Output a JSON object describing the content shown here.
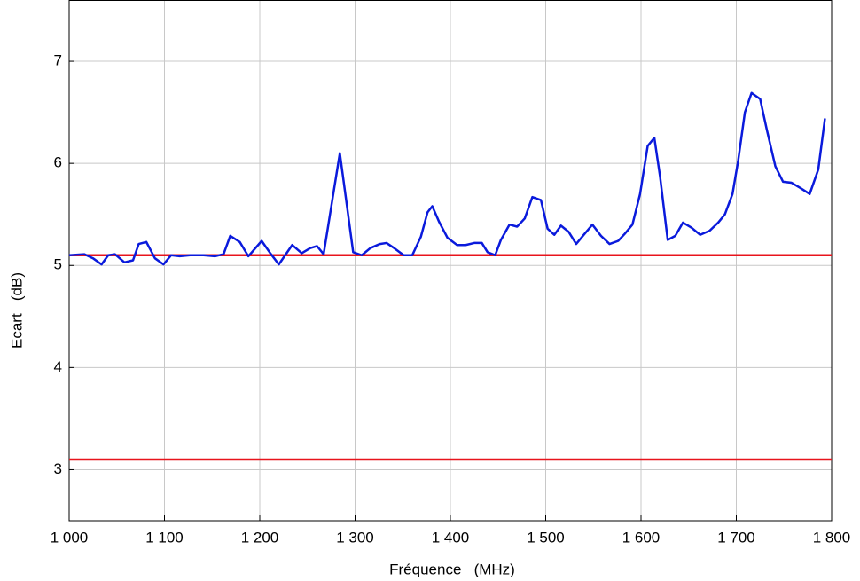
{
  "chart_data": {
    "type": "line",
    "x_label": "Fréquence   (MHz)",
    "y_label": "Ecart   (dB)",
    "xlim": [
      1000,
      1800
    ],
    "ylim": [
      2.5,
      7.6
    ],
    "xticks": [
      {
        "value": 1000,
        "label": "1 000"
      },
      {
        "value": 1100,
        "label": "1 100"
      },
      {
        "value": 1200,
        "label": "1 200"
      },
      {
        "value": 1300,
        "label": "1 300"
      },
      {
        "value": 1400,
        "label": "1 400"
      },
      {
        "value": 1500,
        "label": "1 500"
      },
      {
        "value": 1600,
        "label": "1 600"
      },
      {
        "value": 1700,
        "label": "1 700"
      },
      {
        "value": 1800,
        "label": "1 800"
      }
    ],
    "yticks": [
      3,
      4,
      5,
      6,
      7
    ],
    "grid": true,
    "reference_lines": [
      {
        "value": 5.1,
        "color": "#e8141c"
      },
      {
        "value": 3.1,
        "color": "#e8141c"
      }
    ],
    "series": [
      {
        "color": "#0a1adc",
        "x": [
          1000,
          1016,
          1025,
          1034,
          1041,
          1048,
          1058,
          1067,
          1073,
          1081,
          1090,
          1099,
          1107,
          1116,
          1127,
          1141,
          1153,
          1162,
          1169,
          1179,
          1188,
          1202,
          1211,
          1220,
          1234,
          1244,
          1253,
          1260,
          1267,
          1284,
          1298,
          1307,
          1316,
          1326,
          1333,
          1341,
          1351,
          1360,
          1369,
          1376,
          1381,
          1388,
          1397,
          1407,
          1416,
          1425,
          1433,
          1439,
          1447,
          1453,
          1462,
          1470,
          1478,
          1486,
          1495,
          1502,
          1509,
          1516,
          1524,
          1532,
          1540,
          1549,
          1558,
          1567,
          1576,
          1583,
          1591,
          1599,
          1607,
          1614,
          1620,
          1628,
          1636,
          1644,
          1653,
          1662,
          1672,
          1681,
          1688,
          1696,
          1702,
          1709,
          1716,
          1725,
          1732,
          1741,
          1749,
          1758,
          1767,
          1777,
          1786,
          1793
        ],
        "values": [
          5.1,
          5.11,
          5.07,
          5.01,
          5.1,
          5.11,
          5.03,
          5.05,
          5.21,
          5.23,
          5.07,
          5.01,
          5.1,
          5.09,
          5.1,
          5.1,
          5.09,
          5.11,
          5.29,
          5.23,
          5.09,
          5.24,
          5.12,
          5.01,
          5.2,
          5.12,
          5.17,
          5.19,
          5.11,
          6.1,
          5.13,
          5.1,
          5.17,
          5.21,
          5.22,
          5.17,
          5.1,
          5.1,
          5.28,
          5.52,
          5.58,
          5.43,
          5.27,
          5.2,
          5.2,
          5.22,
          5.22,
          5.13,
          5.1,
          5.25,
          5.4,
          5.38,
          5.46,
          5.67,
          5.64,
          5.36,
          5.3,
          5.39,
          5.33,
          5.21,
          5.3,
          5.4,
          5.29,
          5.21,
          5.24,
          5.31,
          5.4,
          5.7,
          6.17,
          6.25,
          5.87,
          5.25,
          5.29,
          5.42,
          5.37,
          5.3,
          5.34,
          5.42,
          5.5,
          5.7,
          6.03,
          6.5,
          6.69,
          6.63,
          6.33,
          5.97,
          5.82,
          5.81,
          5.76,
          5.7,
          5.94,
          6.44
        ]
      }
    ]
  }
}
